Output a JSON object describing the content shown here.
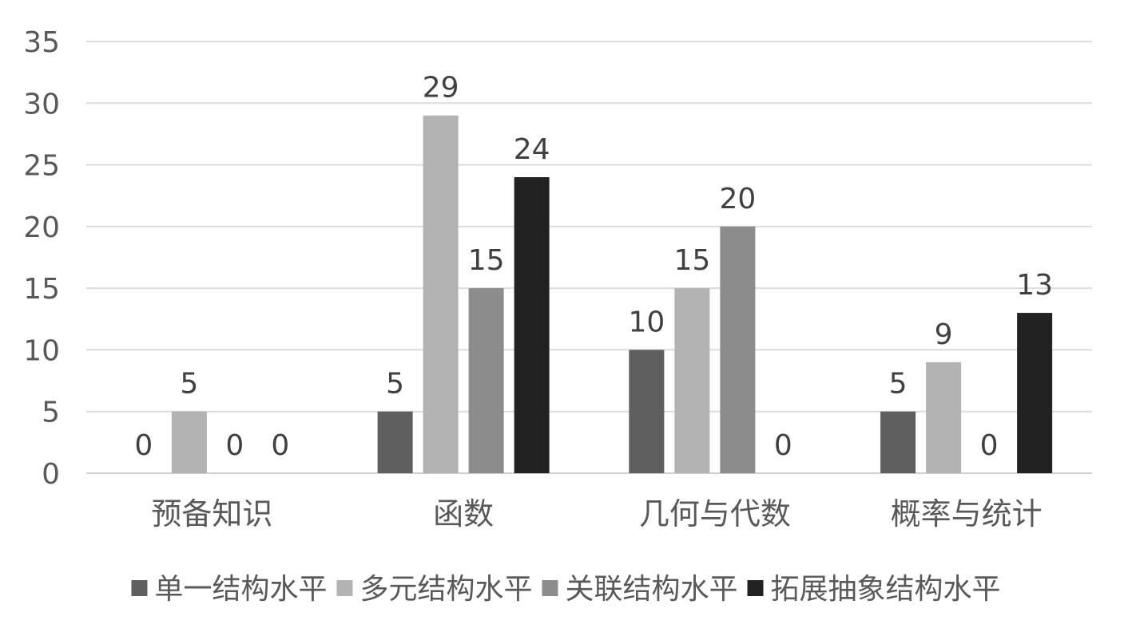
{
  "chart_data": {
    "type": "bar",
    "categories": [
      "预备知识",
      "函数",
      "几何与代数",
      "概率与统计"
    ],
    "series": [
      {
        "name": "单一结构水平",
        "color": "#5f5f5f",
        "values": [
          0,
          5,
          10,
          5
        ]
      },
      {
        "name": "多元结构水平",
        "color": "#b3b3b3",
        "values": [
          5,
          29,
          15,
          9
        ]
      },
      {
        "name": "关联结构水平",
        "color": "#8c8c8c",
        "values": [
          0,
          15,
          20,
          0
        ]
      },
      {
        "name": "拓展抽象结构水平",
        "color": "#222222",
        "values": [
          0,
          24,
          0,
          13
        ]
      }
    ],
    "ylim": [
      0,
      35
    ],
    "yticks": [
      0,
      5,
      10,
      15,
      20,
      25,
      30,
      35
    ],
    "grid": true,
    "legend": "bottom",
    "data_labels": true
  }
}
